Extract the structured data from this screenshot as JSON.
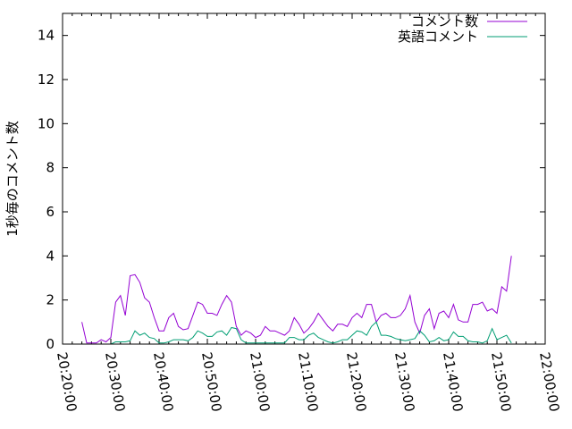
{
  "chart_data": {
    "type": "line",
    "title": "",
    "xlabel": "",
    "ylabel": "1秒毎のコメント数",
    "ylim": [
      0,
      15
    ],
    "xlim": [
      "20:20:00",
      "22:00:00"
    ],
    "yticks": [
      "0",
      "2",
      "4",
      "6",
      "8",
      "10",
      "12",
      "14"
    ],
    "xticks": [
      "20:20:00",
      "20:30:00",
      "20:40:00",
      "20:50:00",
      "21:00:00",
      "21:10:00",
      "21:20:00",
      "21:30:00",
      "21:40:00",
      "21:50:00",
      "22:00:00"
    ],
    "grid": false,
    "legend": "top-right",
    "x": [
      "20:24",
      "20:25",
      "20:26",
      "20:27",
      "20:28",
      "20:29",
      "20:30",
      "20:31",
      "20:32",
      "20:33",
      "20:34",
      "20:35",
      "20:36",
      "20:37",
      "20:38",
      "20:39",
      "20:40",
      "20:41",
      "20:42",
      "20:43",
      "20:44",
      "20:45",
      "20:46",
      "20:47",
      "20:48",
      "20:49",
      "20:50",
      "20:51",
      "20:52",
      "20:53",
      "20:54",
      "20:55",
      "20:56",
      "20:57",
      "20:58",
      "20:59",
      "21:00",
      "21:01",
      "21:02",
      "21:03",
      "21:04",
      "21:05",
      "21:06",
      "21:07",
      "21:08",
      "21:09",
      "21:10",
      "21:11",
      "21:12",
      "21:13",
      "21:14",
      "21:15",
      "21:16",
      "21:17",
      "21:18",
      "21:19",
      "21:20",
      "21:21",
      "21:22",
      "21:23",
      "21:24",
      "21:25",
      "21:26",
      "21:27",
      "21:28",
      "21:29",
      "21:30",
      "21:31",
      "21:32",
      "21:33",
      "21:34",
      "21:35",
      "21:36",
      "21:37",
      "21:38",
      "21:39",
      "21:40",
      "21:41",
      "21:42",
      "21:43",
      "21:44",
      "21:45",
      "21:46",
      "21:47",
      "21:48",
      "21:49",
      "21:50",
      "21:51",
      "21:52",
      "21:53"
    ],
    "series": [
      {
        "name": "コメント数",
        "color": "#9400d3",
        "values": [
          1.0,
          0.05,
          0.05,
          0.05,
          0.2,
          0.1,
          0.3,
          1.9,
          2.2,
          1.3,
          3.1,
          3.15,
          2.8,
          2.1,
          1.9,
          1.2,
          0.6,
          0.6,
          1.2,
          1.4,
          0.8,
          0.65,
          0.7,
          1.3,
          1.9,
          1.8,
          1.4,
          1.4,
          1.3,
          1.8,
          2.2,
          1.9,
          0.8,
          0.4,
          0.6,
          0.5,
          0.3,
          0.4,
          0.8,
          0.6,
          0.6,
          0.5,
          0.4,
          0.6,
          1.2,
          0.9,
          0.5,
          0.7,
          1.0,
          1.4,
          1.1,
          0.8,
          0.6,
          0.9,
          0.9,
          0.8,
          1.2,
          1.4,
          1.2,
          1.8,
          1.8,
          1.0,
          1.3,
          1.4,
          1.2,
          1.2,
          1.3,
          1.6,
          2.2,
          1.0,
          0.5,
          1.3,
          1.6,
          0.7,
          1.4,
          1.5,
          1.2,
          1.8,
          1.1,
          1.0,
          1.0,
          1.8,
          1.8,
          1.9,
          1.5,
          1.6,
          1.4,
          2.6,
          2.4,
          4.0
        ]
      },
      {
        "name": "英語コメント",
        "color": "#009e73",
        "values": [
          0,
          0,
          0,
          0,
          0,
          0,
          0,
          0.1,
          0.1,
          0.1,
          0.15,
          0.6,
          0.4,
          0.5,
          0.3,
          0.25,
          0.05,
          0.05,
          0.1,
          0.2,
          0.2,
          0.2,
          0.15,
          0.3,
          0.6,
          0.5,
          0.35,
          0.35,
          0.55,
          0.6,
          0.4,
          0.75,
          0.7,
          0.2,
          0.05,
          0.05,
          0.05,
          0.05,
          0.05,
          0.05,
          0.05,
          0.05,
          0.05,
          0.3,
          0.3,
          0.2,
          0.2,
          0.4,
          0.5,
          0.3,
          0.2,
          0.1,
          0.05,
          0.1,
          0.2,
          0.2,
          0.4,
          0.6,
          0.55,
          0.4,
          0.8,
          1.0,
          0.4,
          0.4,
          0.35,
          0.25,
          0.2,
          0.15,
          0.2,
          0.25,
          0.6,
          0.4,
          0.1,
          0.15,
          0.3,
          0.15,
          0.2,
          0.55,
          0.35,
          0.35,
          0.15,
          0.1,
          0.1,
          0.05,
          0.15,
          0.7,
          0.2,
          0.3,
          0.4,
          0.05
        ]
      }
    ]
  }
}
